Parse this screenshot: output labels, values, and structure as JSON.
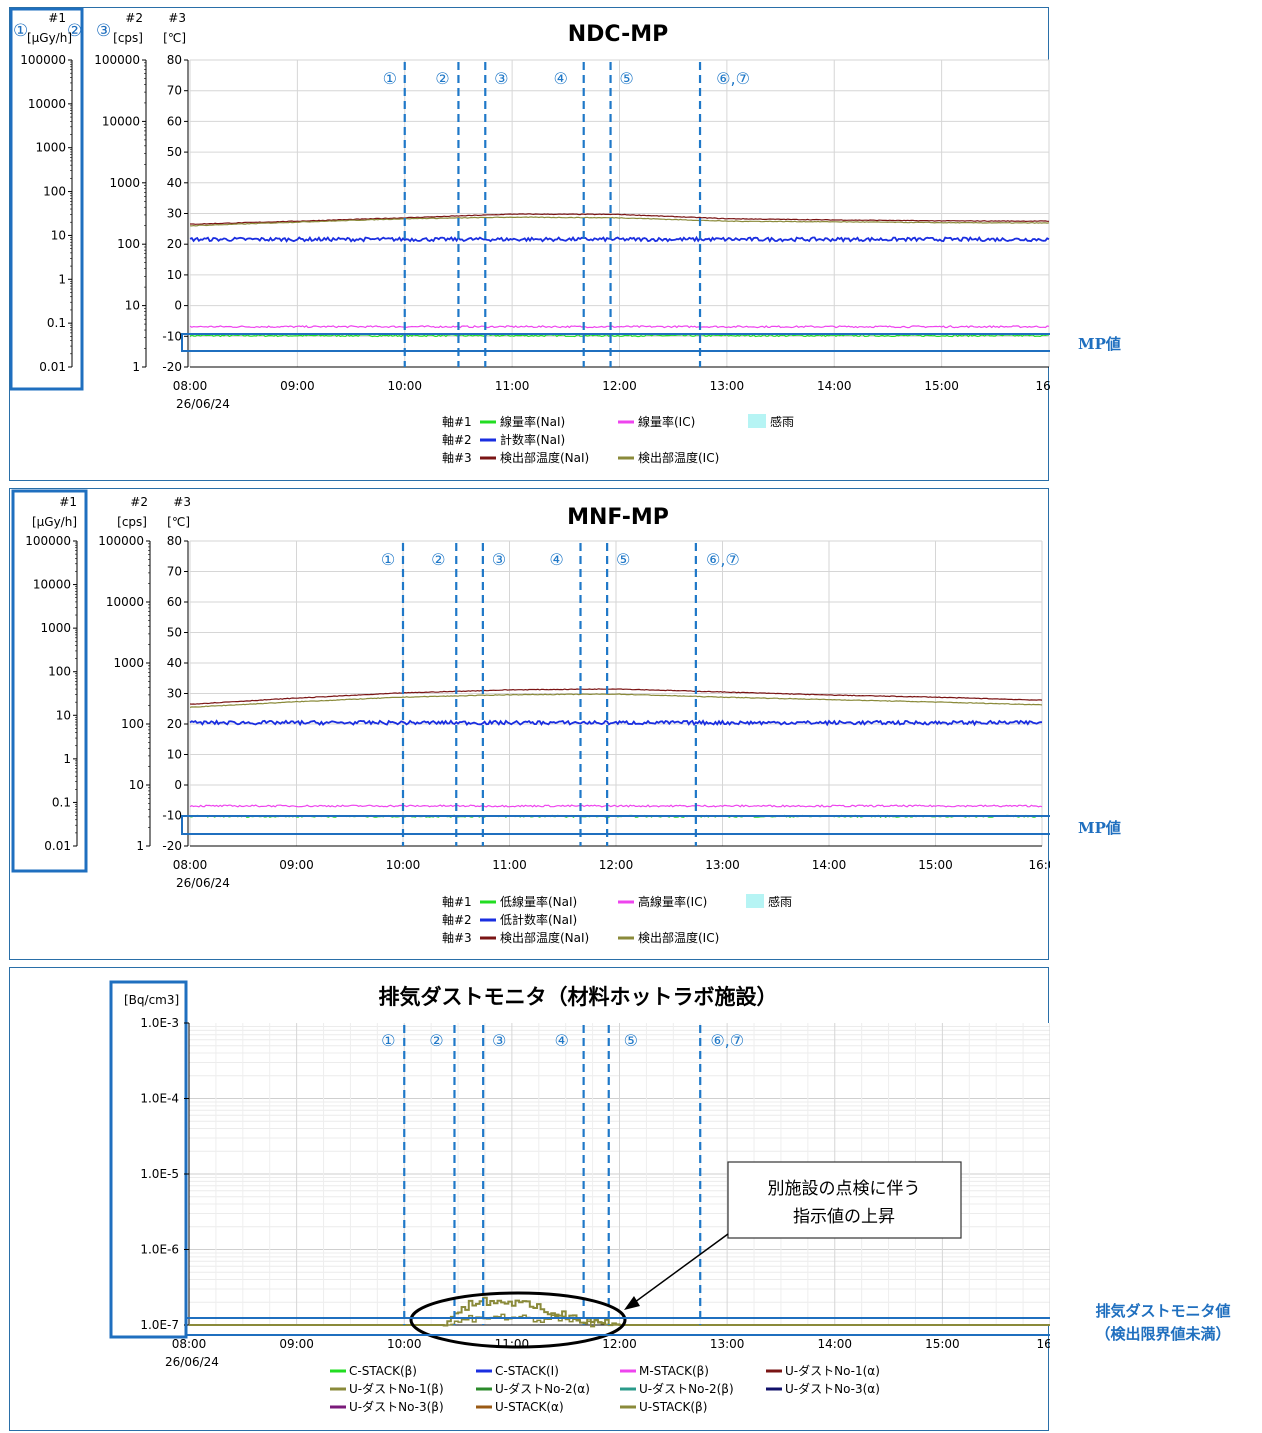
{
  "colors": {
    "frame": "#2a6fa8",
    "marker": "#1f78c8",
    "grid": "#d6d6d6",
    "nai_dose": "#22dd22",
    "ic_dose": "#ee44ee",
    "count": "#1a2ee0",
    "temp_nai": "#7a1414",
    "temp_ic": "#8a8a3a",
    "rain": "#b6f4f4"
  },
  "event_markers": [
    "①",
    "②",
    "③",
    "④",
    "⑤",
    "⑥,⑦"
  ],
  "panel1": {
    "title": "NDC-MP",
    "axis_nums": {
      "a1": "①",
      "a2": "②",
      "a3": "③"
    },
    "axis_ids": {
      "a1": "#1",
      "a2": "#2",
      "a3": "#3"
    },
    "axis_units": {
      "a1": "[μGy/h]",
      "a2": "[cps]",
      "a3": "[℃]"
    },
    "legend": {
      "rows": [
        "軸#1",
        "軸#2",
        "軸#3"
      ],
      "items": [
        "線量率(NaI)",
        "線量率(IC)",
        "感雨",
        "計数率(NaI)",
        "検出部温度(NaI)",
        "検出部温度(IC)"
      ]
    },
    "side_label": "MP値"
  },
  "panel2": {
    "title": "MNF-MP",
    "axis_ids": {
      "a1": "#1",
      "a2": "#2",
      "a3": "#3"
    },
    "axis_units": {
      "a1": "[μGy/h]",
      "a2": "[cps]",
      "a3": "[℃]"
    },
    "legend": {
      "rows": [
        "軸#1",
        "軸#2",
        "軸#3"
      ],
      "items": [
        "低線量率(NaI)",
        "高線量率(IC)",
        "感雨",
        "低計数率(NaI)",
        "検出部温度(NaI)",
        "検出部温度(IC)"
      ]
    },
    "side_label": "MP値"
  },
  "panel3": {
    "title": "排気ダストモニタ（材料ホットラボ施設）",
    "y_unit": "[Bq/cm3]",
    "callout": [
      "別施設の点検に伴う",
      "指示値の上昇"
    ],
    "legend_items": [
      "C-STACK(β)",
      "C-STACK(I)",
      "M-STACK(β)",
      "U-ダストNo-1(α)",
      "U-ダストNo-1(β)",
      "U-ダストNo-2(α)",
      "U-ダストNo-2(β)",
      "U-ダストNo-3(α)",
      "U-ダストNo-3(β)",
      "U-STACK(α)",
      "U-STACK(β)"
    ],
    "legend_colors": [
      "#22dd22",
      "#1a2ee0",
      "#ee44ee",
      "#7a1414",
      "#8a8a3a",
      "#2a8a2a",
      "#2a9a8a",
      "#10106a",
      "#7a1a7a",
      "#9a5a14",
      "#8a8a3a"
    ],
    "side_label": [
      "排気ダストモニタ値",
      "（検出限界値未満）"
    ]
  },
  "chart_data": [
    {
      "type": "line",
      "title": "NDC-MP",
      "x_ticks": [
        "08:00",
        "09:00",
        "10:00",
        "11:00",
        "12:00",
        "13:00",
        "14:00",
        "15:00",
        "16:0"
      ],
      "date_label": "26/06/24",
      "xlim": [
        "08:00",
        "16:00"
      ],
      "axis1_ticks": [
        "100000",
        "10000",
        "1000",
        "100",
        "10",
        "1",
        "0.1",
        "0.01"
      ],
      "axis2_ticks": [
        "100000",
        "10000",
        "1000",
        "100",
        "10",
        "1"
      ],
      "axis3_ticks": [
        "80",
        "70",
        "60",
        "50",
        "40",
        "30",
        "20",
        "10",
        "0",
        "-10",
        "-20"
      ],
      "axis3_range": [
        -20,
        80
      ],
      "event_times": [
        "10:00",
        "10:30",
        "10:45",
        "11:40",
        "11:55",
        "12:45"
      ],
      "series": [
        {
          "name": "線量率(NaI)",
          "axis": "#1",
          "x": [
            "08:00",
            "16:00"
          ],
          "y": [
            0.052,
            0.052
          ],
          "color": "#22dd22"
        },
        {
          "name": "線量率(IC)",
          "axis": "#1",
          "x": [
            "08:00",
            "16:00"
          ],
          "y": [
            0.083,
            0.083
          ],
          "color": "#ee44ee"
        },
        {
          "name": "計数率(NaI)",
          "axis": "#2",
          "x": [
            "08:00",
            "16:00"
          ],
          "y": [
            120,
            120
          ],
          "color": "#1a2ee0"
        },
        {
          "name": "検出部温度(NaI)",
          "axis": "#3",
          "x": [
            "08:00",
            "09:00",
            "10:00",
            "11:00",
            "12:00",
            "13:00",
            "14:00",
            "15:00",
            "16:00"
          ],
          "y": [
            26.5,
            27.5,
            28.6,
            29.8,
            29.7,
            28.3,
            27.9,
            27.6,
            27.5
          ],
          "color": "#7a1414"
        },
        {
          "name": "検出部温度(IC)",
          "axis": "#3",
          "x": [
            "08:00",
            "09:00",
            "10:00",
            "11:00",
            "12:00",
            "13:00",
            "14:00",
            "15:00",
            "16:00"
          ],
          "y": [
            26.0,
            27.2,
            28.3,
            28.8,
            28.6,
            27.5,
            27.3,
            27.0,
            26.9
          ],
          "color": "#8a8a3a"
        }
      ]
    },
    {
      "type": "line",
      "title": "MNF-MP",
      "x_ticks": [
        "08:00",
        "09:00",
        "10:00",
        "11:00",
        "12:00",
        "13:00",
        "14:00",
        "15:00",
        "16:0"
      ],
      "date_label": "26/06/24",
      "xlim": [
        "08:00",
        "16:00"
      ],
      "axis1_ticks": [
        "100000",
        "10000",
        "1000",
        "100",
        "10",
        "1",
        "0.1",
        "0.01"
      ],
      "axis2_ticks": [
        "100000",
        "10000",
        "1000",
        "100",
        "10",
        "1"
      ],
      "axis3_ticks": [
        "80",
        "70",
        "60",
        "50",
        "40",
        "30",
        "20",
        "10",
        "0",
        "-10",
        "-20"
      ],
      "axis3_range": [
        -20,
        80
      ],
      "event_times": [
        "10:00",
        "10:30",
        "10:45",
        "11:40",
        "11:55",
        "12:45"
      ],
      "series": [
        {
          "name": "低線量率(NaI)",
          "axis": "#1",
          "x": [
            "08:00",
            "16:00"
          ],
          "y": [
            0.048,
            0.048
          ],
          "color": "#22dd22"
        },
        {
          "name": "高線量率(IC)",
          "axis": "#1",
          "x": [
            "08:00",
            "16:00"
          ],
          "y": [
            0.083,
            0.083
          ],
          "color": "#ee44ee"
        },
        {
          "name": "低計数率(NaI)",
          "axis": "#2",
          "x": [
            "08:00",
            "16:00"
          ],
          "y": [
            105,
            105
          ],
          "color": "#1a2ee0"
        },
        {
          "name": "検出部温度(NaI)",
          "axis": "#3",
          "x": [
            "08:00",
            "09:00",
            "10:00",
            "11:00",
            "12:00",
            "13:00",
            "14:00",
            "15:00",
            "16:00"
          ],
          "y": [
            26.5,
            28.5,
            30.2,
            31.2,
            31.5,
            30.5,
            29.5,
            28.8,
            27.8
          ],
          "color": "#7a1414"
        },
        {
          "name": "検出部温度(IC)",
          "axis": "#3",
          "x": [
            "08:00",
            "09:00",
            "10:00",
            "11:00",
            "12:00",
            "13:00",
            "14:00",
            "15:00",
            "16:00"
          ],
          "y": [
            25.5,
            27.3,
            28.8,
            29.6,
            29.8,
            28.8,
            28.0,
            27.2,
            26.3
          ],
          "color": "#8a8a3a"
        }
      ]
    },
    {
      "type": "line",
      "title": "排気ダストモニタ（材料ホットラボ施設）",
      "y_scale": "log",
      "ylim": [
        1e-07,
        0.001
      ],
      "y_ticks": [
        "1.0E-3",
        "1.0E-4",
        "1.0E-5",
        "1.0E-6",
        "1.0E-7"
      ],
      "x_ticks": [
        "08:00",
        "09:00",
        "10:00",
        "11:00",
        "12:00",
        "13:00",
        "14:00",
        "15:00",
        "16:0"
      ],
      "date_label": "26/06/24",
      "xlim": [
        "08:00",
        "16:00"
      ],
      "event_times": [
        "10:00",
        "10:28",
        "10:44",
        "11:40",
        "11:54",
        "12:45"
      ],
      "series": [
        {
          "name": "U-STACK(β)",
          "x": [
            "08:00",
            "10:20",
            "10:30",
            "10:40",
            "11:00",
            "11:20",
            "11:40",
            "12:00",
            "16:00"
          ],
          "y": [
            1e-07,
            1e-07,
            1.5e-07,
            2.1e-07,
            2e-07,
            1.5e-07,
            1.2e-07,
            1e-07,
            1e-07
          ],
          "color": "#8a8a3a"
        },
        {
          "name": "U-ダストNo-1(β)",
          "x": [
            "08:00",
            "10:25",
            "10:40",
            "11:00",
            "11:30",
            "11:55",
            "16:00"
          ],
          "y": [
            1e-07,
            1e-07,
            1.3e-07,
            1.25e-07,
            1.15e-07,
            1e-07,
            1e-07
          ],
          "color": "#8a8a3a"
        }
      ]
    }
  ]
}
